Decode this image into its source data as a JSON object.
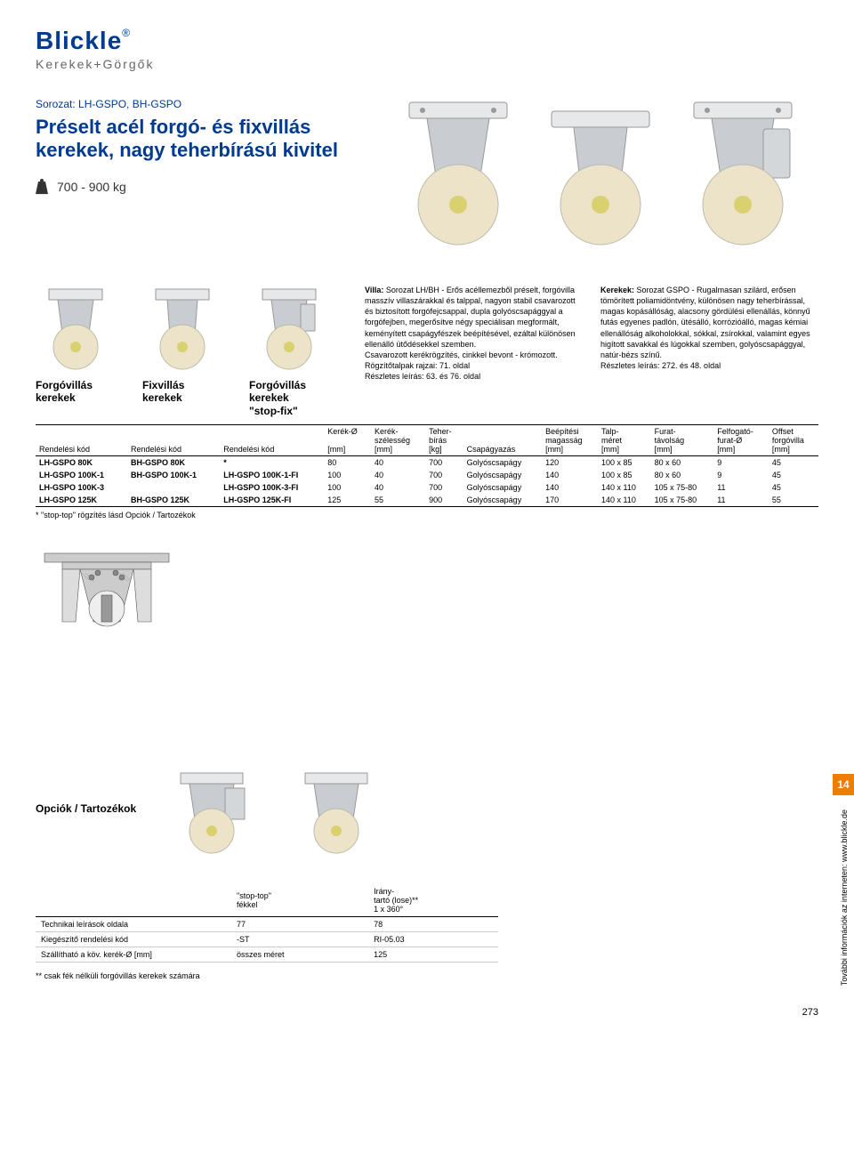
{
  "logo": {
    "brand": "Blickle",
    "sub": "Kerekek+Görgők"
  },
  "header": {
    "series": "Sorozat: LH-GSPO, BH-GSPO",
    "title": "Préselt acél forgó- és fixvillás kerekek, nagy teherbírású kivitel",
    "capacity": "700 - 900 kg"
  },
  "thumbs": [
    {
      "label": "Forgóvillás\nkerekek",
      "order_label": "Rendelési kód"
    },
    {
      "label": "Fixvillás\nkerekek",
      "order_label": "Rendelési kód"
    },
    {
      "label": "Forgóvillás\nkerekek\n\"stop-fix\"",
      "order_label": "Rendelési kód"
    }
  ],
  "desc": {
    "villa_lead": "Villa:",
    "villa_text": " Sorozat LH/BH - Erős acéllemezből préselt, forgóvilla masszív villaszárakkal és talppal, nagyon stabil csavarozott és biztosított forgófejcsappal, dupla golyóscsapággyal a forgófejben, megerősítve négy speciálisan megformált, keményített csapágyfészek beépítésével, ezáltal különösen ellenálló ütődésekkel szemben.",
    "villa_text2": "Csavarozott kerékrögzítés, cinkkel bevont - krómozott.",
    "villa_text3": "Rögzítőtalpak rajzai: 71. oldal",
    "villa_text4": "Részletes leírás: 63. és 76. oldal",
    "kerekek_lead": "Kerekek:",
    "kerekek_text": " Sorozat GSPO - Rugalmasan szilárd, erősen tömörített poliamidöntvény, különösen nagy teherbírással, magas kopásállóság, alacsony gördülési ellenállás, könnyű futás egyenes padlón, ütésálló, korrózióálló, magas kémiai ellenállóság alkoholokkal, sókkal, zsírokkal, valamint egyes higított savakkal és lúgokkal szemben, golyóscsapággyal, natúr-bézs színű.",
    "kerekek_text2": "Részletes leírás: 272. és 48. oldal"
  },
  "spec": {
    "headers": [
      "Rendelési kód",
      "Rendelési kód",
      "Rendelési kód",
      "Kerék-Ø\n\n[mm]",
      "Kerék-\nszélesség\n[mm]",
      "Teher-\nbírás\n[kg]",
      "Csapágyazás",
      "Beépítési\nmagasság\n[mm]",
      "Talp-\nméret\n[mm]",
      "Furat-\ntávolság\n[mm]",
      "Felfogató-\nfurat-Ø\n[mm]",
      "Offset\nforgóvilla\n[mm]"
    ],
    "rows": [
      [
        "LH-GSPO 80K",
        "BH-GSPO 80K",
        "*",
        "80",
        "40",
        "700",
        "Golyóscsapágy",
        "120",
        "100 x 85",
        "80 x 60",
        "9",
        "45"
      ],
      [
        "LH-GSPO 100K-1",
        "BH-GSPO 100K-1",
        "LH-GSPO 100K-1-FI",
        "100",
        "40",
        "700",
        "Golyóscsapágy",
        "140",
        "100 x 85",
        "80 x 60",
        "9",
        "45"
      ],
      [
        "LH-GSPO 100K-3",
        "",
        "LH-GSPO 100K-3-FI",
        "100",
        "40",
        "700",
        "Golyóscsapágy",
        "140",
        "140 x 110",
        "105 x 75-80",
        "11",
        "45"
      ],
      [
        "LH-GSPO 125K",
        "BH-GSPO 125K",
        "LH-GSPO 125K-FI",
        "125",
        "55",
        "900",
        "Golyóscsapágy",
        "170",
        "140 x 110",
        "105 x 75-80",
        "11",
        "55"
      ]
    ],
    "footnote": "* \"stop-top\" rögzítés lásd Opciók / Tartozékok"
  },
  "options": {
    "title": "Opciók / Tartozékok",
    "col1": "\"stop-top\"\nfékkel",
    "col2": "Irány-\ntartó (lose)**\n1 x 360°",
    "rows": [
      {
        "label": "Technikai leírások oldala",
        "v1": "77",
        "v2": "78"
      },
      {
        "label": "Kiegészítő rendelési kód",
        "v1": "-ST",
        "v2": "RI-05.03"
      },
      {
        "label": "Szállítható a köv. kerék-Ø [mm]",
        "v1": "összes méret",
        "v2": "125"
      }
    ],
    "footnote": "** csak fék nélküli forgóvillás kerekek számára"
  },
  "side": {
    "tab": "14",
    "text": "További információk az interneten: www.blickle.de"
  },
  "pagenum": "273",
  "colors": {
    "brand_blue": "#003b8f",
    "orange": "#ef7d00",
    "wheel": "#ede3c9",
    "metal1": "#c9cdd1",
    "metal2": "#e6e8ea"
  }
}
